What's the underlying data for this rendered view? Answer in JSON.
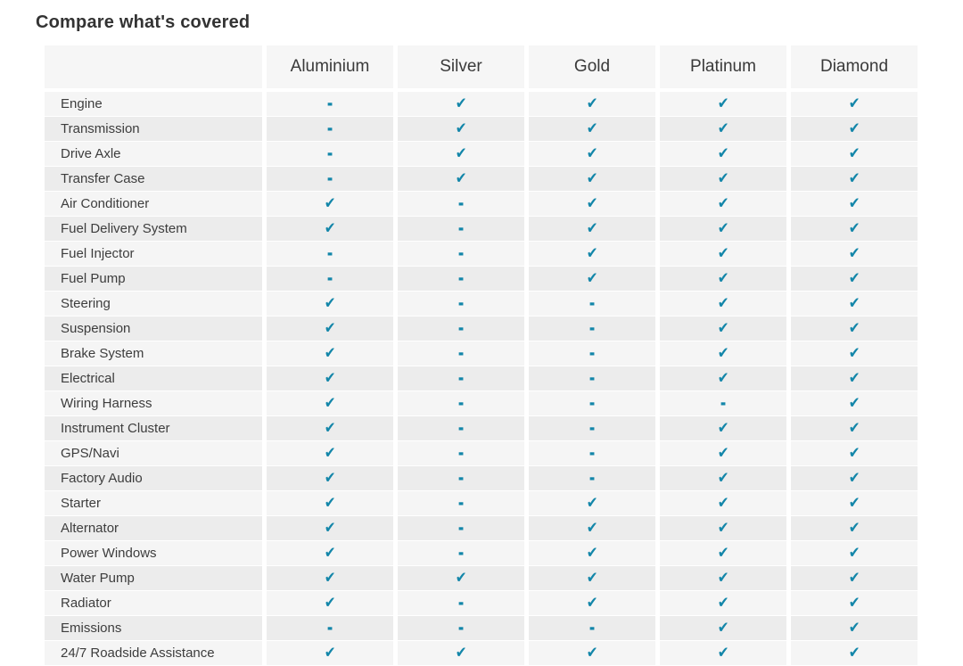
{
  "page": {
    "title": "Compare what's covered"
  },
  "table": {
    "plans": [
      "Aluminium",
      "Silver",
      "Gold",
      "Platinum",
      "Diamond"
    ],
    "symbols": {
      "check": "✔",
      "dash": "-"
    },
    "colors": {
      "accent": "#1386a9",
      "row_light": "#f5f5f5",
      "row_dark": "#ececec",
      "header_bg": "#f6f6f6",
      "text": "#3d3d3d"
    },
    "rows": [
      {
        "feature": "Engine",
        "coverage": [
          "dash",
          "check",
          "check",
          "check",
          "check"
        ]
      },
      {
        "feature": "Transmission",
        "coverage": [
          "dash",
          "check",
          "check",
          "check",
          "check"
        ]
      },
      {
        "feature": "Drive Axle",
        "coverage": [
          "dash",
          "check",
          "check",
          "check",
          "check"
        ]
      },
      {
        "feature": "Transfer Case",
        "coverage": [
          "dash",
          "check",
          "check",
          "check",
          "check"
        ]
      },
      {
        "feature": "Air Conditioner",
        "coverage": [
          "check",
          "dash",
          "check",
          "check",
          "check"
        ]
      },
      {
        "feature": "Fuel Delivery System",
        "coverage": [
          "check",
          "dash",
          "check",
          "check",
          "check"
        ]
      },
      {
        "feature": "Fuel Injector",
        "coverage": [
          "dash",
          "dash",
          "check",
          "check",
          "check"
        ]
      },
      {
        "feature": "Fuel Pump",
        "coverage": [
          "dash",
          "dash",
          "check",
          "check",
          "check"
        ]
      },
      {
        "feature": "Steering",
        "coverage": [
          "check",
          "dash",
          "dash",
          "check",
          "check"
        ]
      },
      {
        "feature": "Suspension",
        "coverage": [
          "check",
          "dash",
          "dash",
          "check",
          "check"
        ]
      },
      {
        "feature": "Brake System",
        "coverage": [
          "check",
          "dash",
          "dash",
          "check",
          "check"
        ]
      },
      {
        "feature": "Electrical",
        "coverage": [
          "check",
          "dash",
          "dash",
          "check",
          "check"
        ]
      },
      {
        "feature": "Wiring Harness",
        "coverage": [
          "check",
          "dash",
          "dash",
          "dash",
          "check"
        ]
      },
      {
        "feature": "Instrument Cluster",
        "coverage": [
          "check",
          "dash",
          "dash",
          "check",
          "check"
        ]
      },
      {
        "feature": "GPS/Navi",
        "coverage": [
          "check",
          "dash",
          "dash",
          "check",
          "check"
        ]
      },
      {
        "feature": "Factory Audio",
        "coverage": [
          "check",
          "dash",
          "dash",
          "check",
          "check"
        ]
      },
      {
        "feature": "Starter",
        "coverage": [
          "check",
          "dash",
          "check",
          "check",
          "check"
        ]
      },
      {
        "feature": "Alternator",
        "coverage": [
          "check",
          "dash",
          "check",
          "check",
          "check"
        ]
      },
      {
        "feature": "Power Windows",
        "coverage": [
          "check",
          "dash",
          "check",
          "check",
          "check"
        ]
      },
      {
        "feature": "Water Pump",
        "coverage": [
          "check",
          "check",
          "check",
          "check",
          "check"
        ]
      },
      {
        "feature": "Radiator",
        "coverage": [
          "check",
          "dash",
          "check",
          "check",
          "check"
        ]
      },
      {
        "feature": "Emissions",
        "coverage": [
          "dash",
          "dash",
          "dash",
          "check",
          "check"
        ]
      },
      {
        "feature": "24/7 Roadside Assistance",
        "coverage": [
          "check",
          "check",
          "check",
          "check",
          "check"
        ]
      }
    ]
  }
}
